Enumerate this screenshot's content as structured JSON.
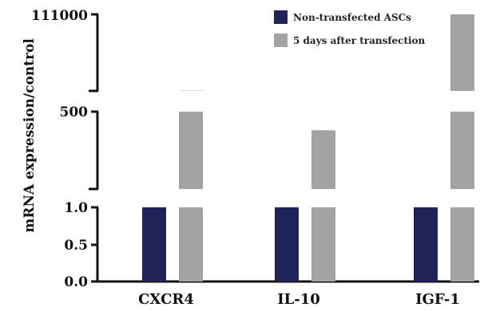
{
  "chart_data": {
    "type": "bar",
    "ylabel": "mRNA expression/control",
    "categories": [
      "CXCR4",
      "IL-10",
      "IGF-1"
    ],
    "series": [
      {
        "name": "Non-transfected ASCs",
        "color": "#1f2358",
        "values": [
          1.0,
          1.0,
          1.0
        ]
      },
      {
        "name": "5 days after transfection",
        "color": "#a3a3a3",
        "values": [
          1000,
          380,
          111000
        ]
      }
    ],
    "y_segments": [
      {
        "range": [
          0,
          1.0
        ],
        "ticks": [
          "0.0",
          "0.5",
          "1.0"
        ]
      },
      {
        "range": [
          1.0,
          500
        ],
        "ticks": [
          "500"
        ]
      },
      {
        "range": [
          500,
          111000
        ],
        "ticks": [
          "111000"
        ]
      }
    ],
    "legend_position": "top-right",
    "grid": false
  }
}
